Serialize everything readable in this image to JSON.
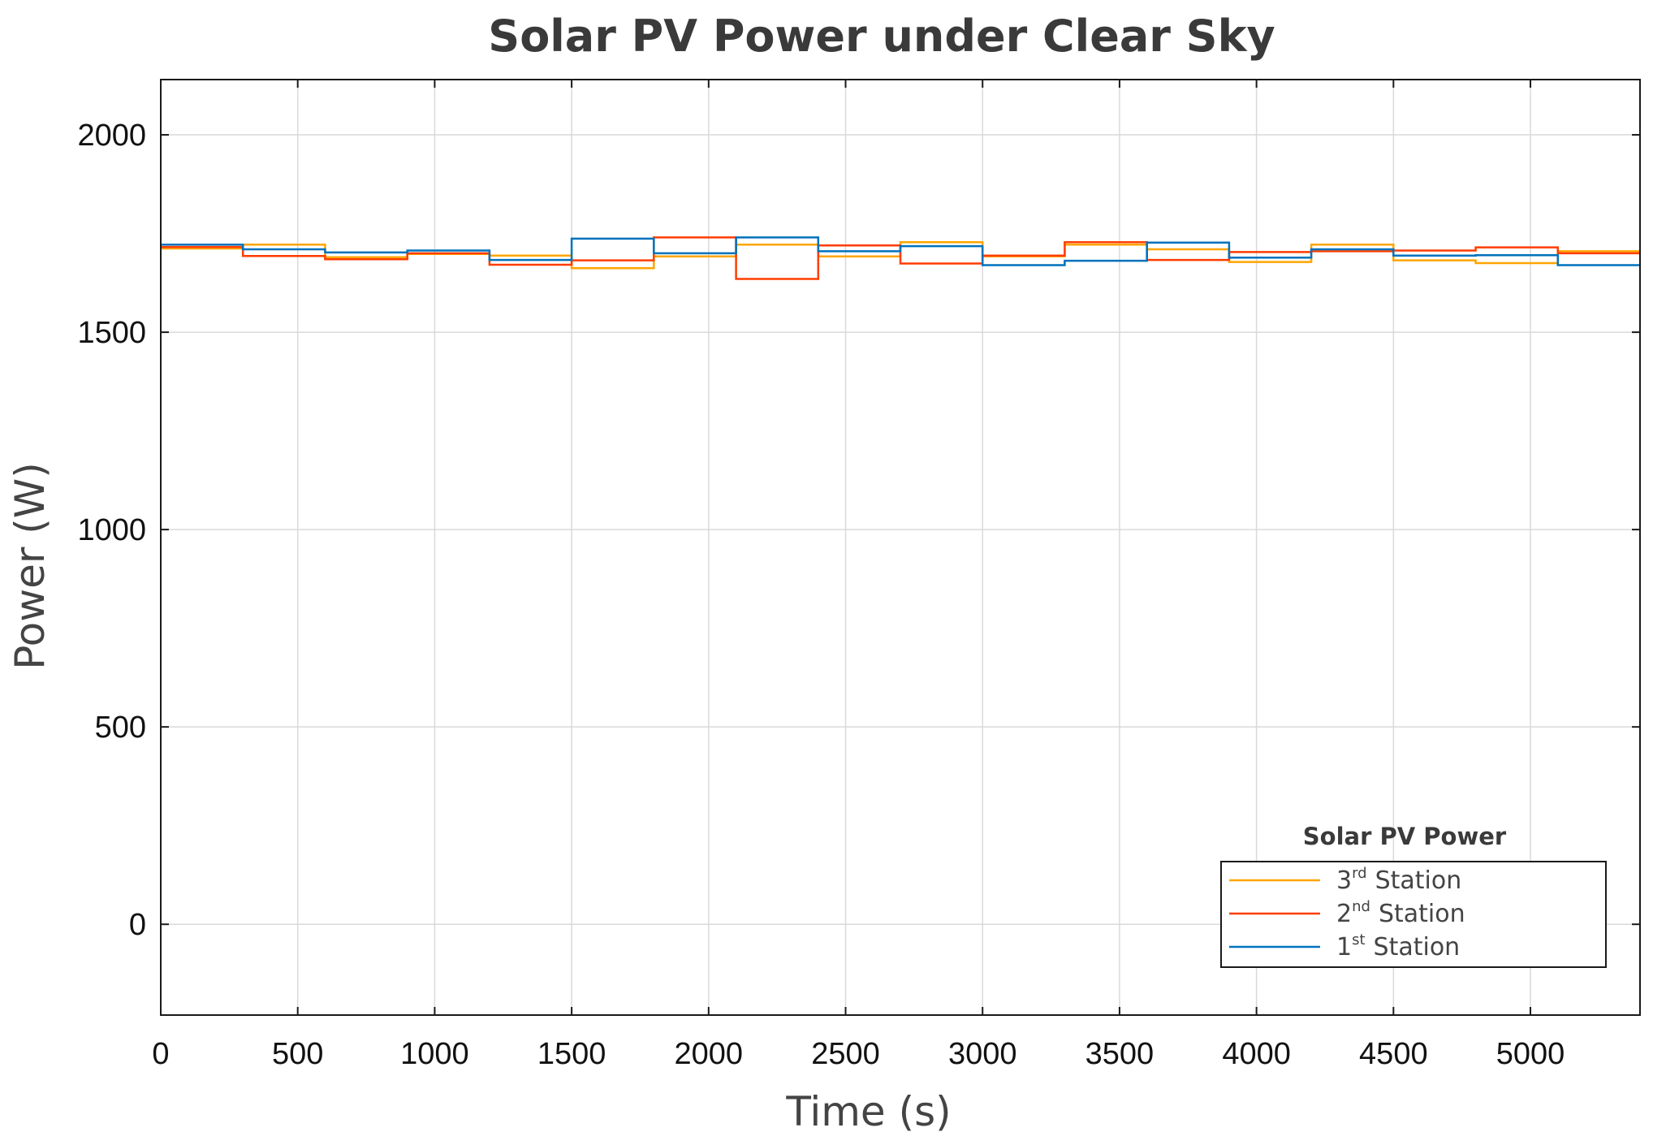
{
  "chart_data": {
    "type": "line",
    "step": true,
    "title": "Solar PV Power under Clear Sky",
    "xlabel": "Time (s)",
    "ylabel": "Power (W)",
    "xlim": [
      0,
      5400
    ],
    "ylim": [
      -230,
      2140
    ],
    "xticks": [
      0,
      500,
      1000,
      1500,
      2000,
      2500,
      3000,
      3500,
      4000,
      4500,
      5000
    ],
    "yticks": [
      0,
      500,
      1000,
      1500,
      2000
    ],
    "xtick_labels": [
      "0",
      "500",
      "1000",
      "1500",
      "2000",
      "2500",
      "3000",
      "3500",
      "4000",
      "4500",
      "5000"
    ],
    "ytick_labels": [
      "0",
      "500",
      "1000",
      "1500",
      "2000"
    ],
    "grid": true,
    "legend": {
      "title": "Solar PV Power",
      "position": "bottom-right"
    },
    "x": [
      0,
      300,
      600,
      900,
      1200,
      1500,
      1800,
      2100,
      2400,
      2700,
      3000,
      3300,
      3600,
      3900,
      4200,
      4500,
      4800,
      5100,
      5400
    ],
    "series": [
      {
        "name": "3rd Station",
        "num": "3",
        "sup": "rd",
        "label": "Station",
        "color": "#FFA500",
        "values": [
          1712,
          1722,
          1690,
          1698,
          1694,
          1662,
          1692,
          1722,
          1692,
          1728,
          1692,
          1722,
          1710,
          1678,
          1722,
          1682,
          1675,
          1705,
          1705
        ]
      },
      {
        "name": "2nd Station",
        "num": "2",
        "sup": "nd",
        "label": "Station",
        "color": "#FF3D00",
        "values": [
          1716,
          1693,
          1685,
          1700,
          1671,
          1682,
          1740,
          1635,
          1720,
          1674,
          1694,
          1728,
          1683,
          1703,
          1705,
          1707,
          1715,
          1700,
          1700
        ]
      },
      {
        "name": "1st Station",
        "num": "1",
        "sup": "st",
        "label": "Station",
        "color": "#0072BD",
        "values": [
          1722,
          1710,
          1702,
          1707,
          1683,
          1737,
          1700,
          1740,
          1705,
          1718,
          1670,
          1681,
          1727,
          1689,
          1710,
          1694,
          1695,
          1670,
          1670
        ]
      }
    ]
  }
}
